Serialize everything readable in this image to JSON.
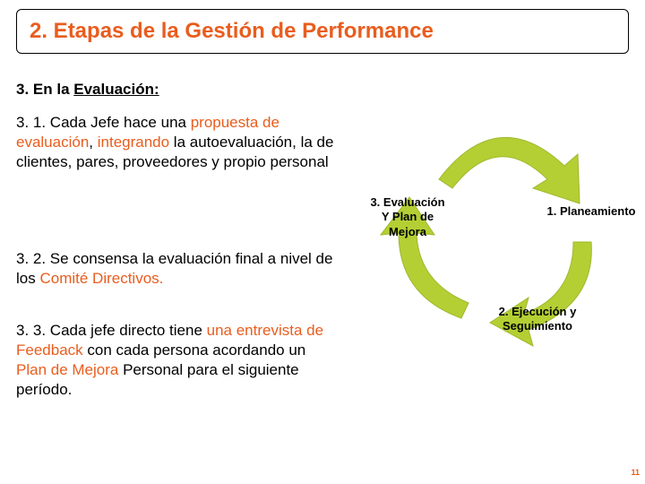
{
  "title": {
    "text": "2. Etapas de la Gestión de Performance",
    "color": "#e95d1e",
    "fontsize": 24
  },
  "subtitle": {
    "prefix": "3. En la ",
    "underlined": "Evaluación:",
    "color": "#000000",
    "fontsize": 17
  },
  "paragraphs": {
    "p1": {
      "runs": [
        {
          "text": "3. 1. Cada Jefe hace una ",
          "color": "#000000"
        },
        {
          "text": "propuesta de evaluación",
          "color": "#e95d1e"
        },
        {
          "text": ", ",
          "color": "#000000"
        },
        {
          "text": "integrando",
          "color": "#e95d1e"
        },
        {
          "text": " la autoevaluación, la de clientes, pares, proveedores y propio personal",
          "color": "#000000"
        }
      ]
    },
    "p2": {
      "runs": [
        {
          "text": "3. 2. Se consensa la evaluación final a nivel de los ",
          "color": "#000000"
        },
        {
          "text": "Comité Directivos.",
          "color": "#e95d1e"
        }
      ]
    },
    "p3": {
      "runs": [
        {
          "text": "3. 3. Cada jefe directo tiene ",
          "color": "#000000"
        },
        {
          "text": "una entrevista de Feedback",
          "color": "#e95d1e"
        },
        {
          "text": " con cada persona acordando un ",
          "color": "#000000"
        },
        {
          "text": "Plan de Mejora",
          "color": "#e95d1e"
        },
        {
          "text": " Personal para el siguiente período.",
          "color": "#000000"
        }
      ]
    }
  },
  "diagram": {
    "type": "cycle",
    "arrow_fill": "#b4cf33",
    "arrow_stroke": "#9fb82d",
    "labels": {
      "l1": {
        "line1": "1. Planeamiento",
        "line2": ""
      },
      "l2": {
        "line1": "2. Ejecución y",
        "line2": "Seguimiento"
      },
      "l3": {
        "line1": "3. Evaluación",
        "line2": "Y Plan de",
        "line3": "Mejora"
      }
    }
  },
  "pagenum": {
    "text": "11",
    "color": "#e95d1e"
  }
}
